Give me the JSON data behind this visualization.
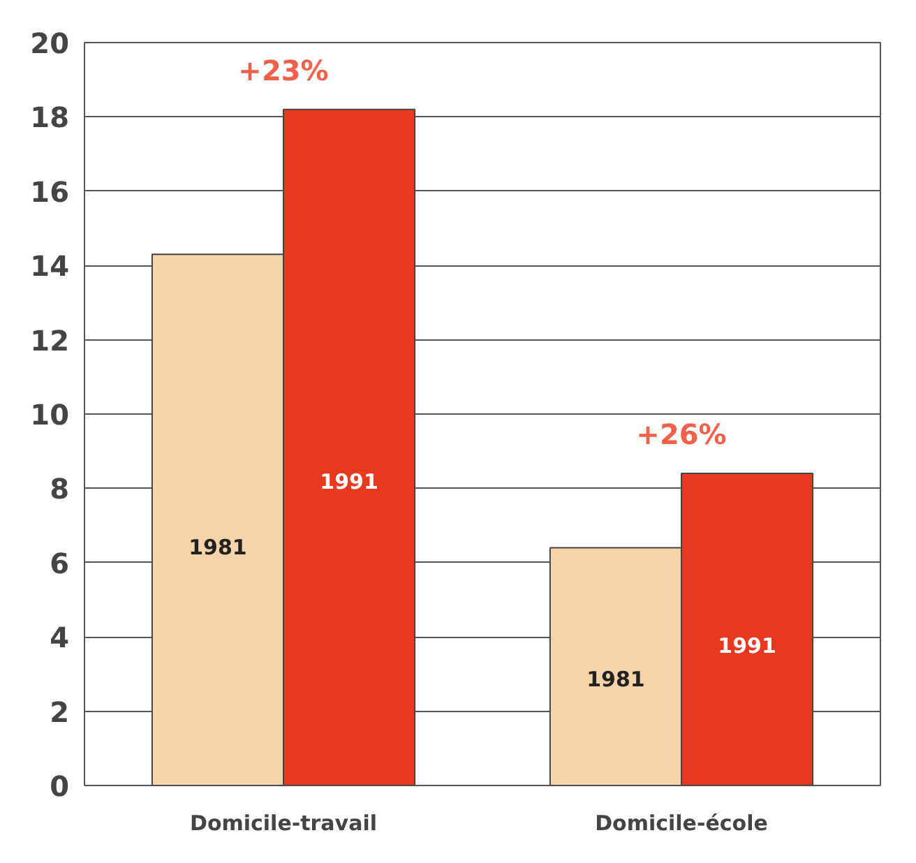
{
  "chart_data": {
    "type": "bar",
    "categories": [
      "Domicile-travail",
      "Domicile-école"
    ],
    "series": [
      {
        "name": "1981",
        "color": "#f6d3a8",
        "values": [
          14.3,
          6.4
        ]
      },
      {
        "name": "1991",
        "color": "#e8391f",
        "values": [
          18.2,
          8.4
        ]
      }
    ],
    "ylim": [
      0,
      20
    ],
    "yticks": [
      0,
      2,
      4,
      6,
      8,
      10,
      12,
      14,
      16,
      18,
      20
    ],
    "grid": "y",
    "annotations": [
      "+23%",
      "+26%"
    ]
  }
}
